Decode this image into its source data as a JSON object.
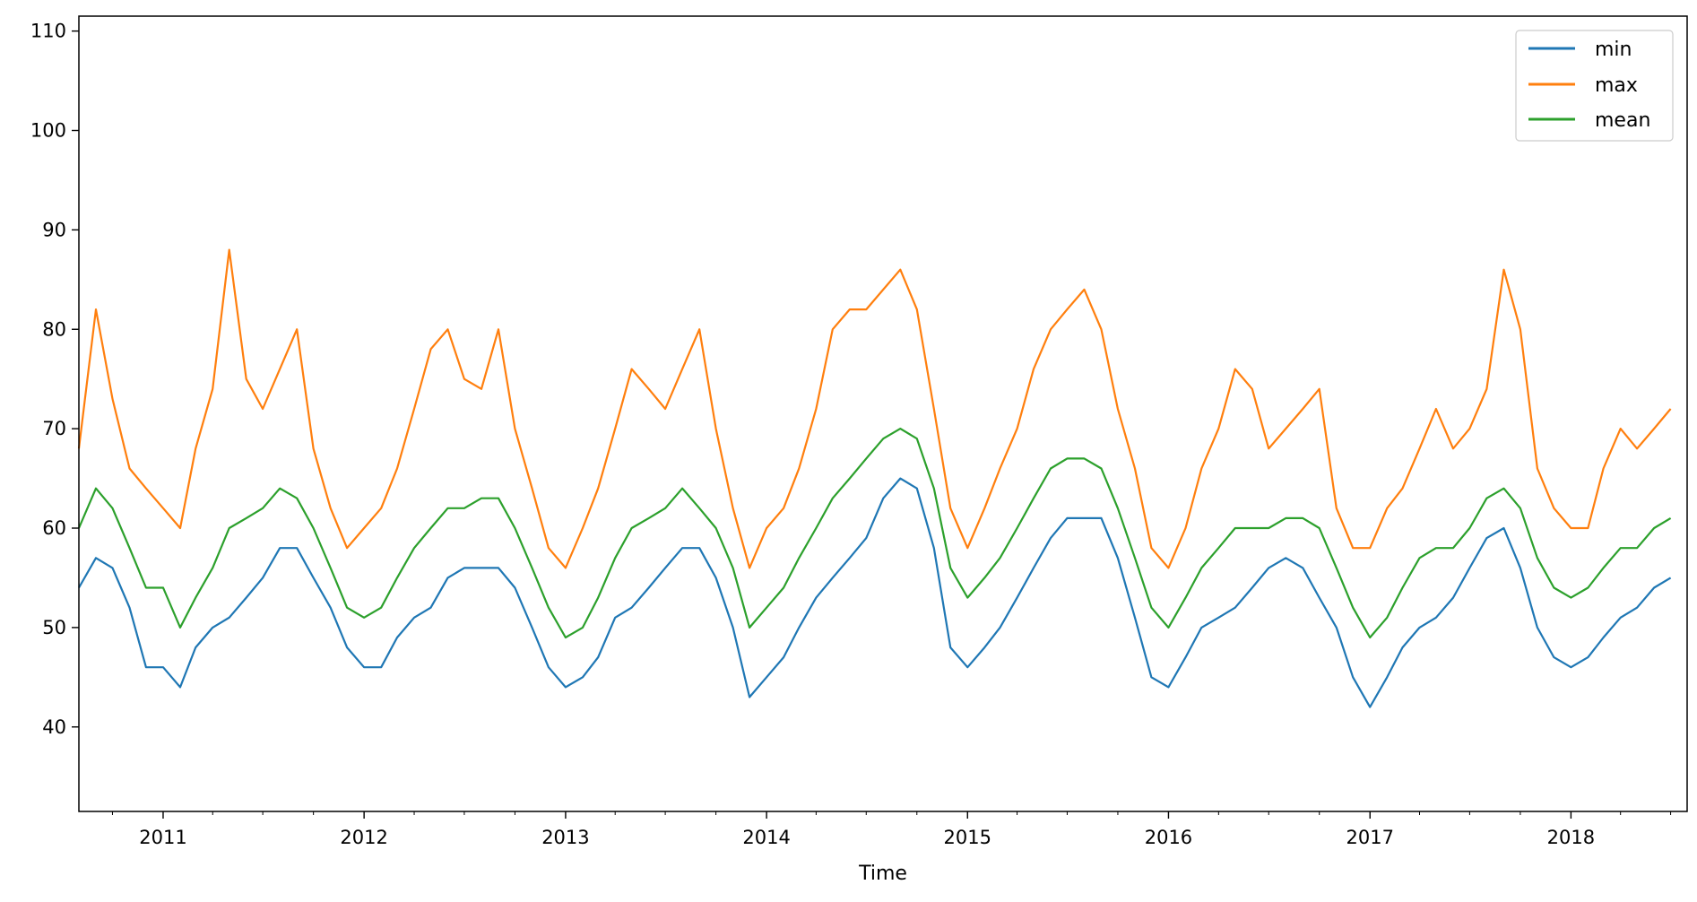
{
  "chart_data": {
    "type": "line",
    "title": "",
    "xlabel": "Time",
    "ylabel": "",
    "xlim": [
      "2010-08-01",
      "2018-07-31"
    ],
    "ylim": [
      31.5,
      111.5
    ],
    "x_ticks": [
      "2011",
      "2012",
      "2013",
      "2014",
      "2015",
      "2016",
      "2017",
      "2018"
    ],
    "y_ticks": [
      40,
      50,
      60,
      70,
      80,
      90,
      100,
      110
    ],
    "grid": false,
    "legend": {
      "position": "top-right",
      "entries": [
        "min",
        "max",
        "mean"
      ]
    },
    "series": [
      {
        "name": "min",
        "color": "#1f77b4",
        "x": [
          "2010-08-01",
          "2010-09-01",
          "2010-10-01",
          "2010-11-01",
          "2010-12-01",
          "2011-01-01",
          "2011-02-01",
          "2011-03-01",
          "2011-04-01",
          "2011-05-01",
          "2011-06-01",
          "2011-07-01",
          "2011-08-01",
          "2011-09-01",
          "2011-10-01",
          "2011-11-01",
          "2011-12-01",
          "2012-01-01",
          "2012-02-01",
          "2012-03-01",
          "2012-04-01",
          "2012-05-01",
          "2012-06-01",
          "2012-07-01",
          "2012-08-01",
          "2012-09-01",
          "2012-10-01",
          "2012-11-01",
          "2012-12-01",
          "2013-01-01",
          "2013-02-01",
          "2013-03-01",
          "2013-04-01",
          "2013-05-01",
          "2013-06-01",
          "2013-07-01",
          "2013-08-01",
          "2013-09-01",
          "2013-10-01",
          "2013-11-01",
          "2013-12-01",
          "2014-01-01",
          "2014-02-01",
          "2014-03-01",
          "2014-04-01",
          "2014-05-01",
          "2014-06-01",
          "2014-07-01",
          "2014-08-01",
          "2014-09-01",
          "2014-10-01",
          "2014-11-01",
          "2014-12-01",
          "2015-01-01",
          "2015-02-01",
          "2015-03-01",
          "2015-04-01",
          "2015-05-01",
          "2015-06-01",
          "2015-07-01",
          "2015-08-01",
          "2015-09-01",
          "2015-10-01",
          "2015-11-01",
          "2015-12-01",
          "2016-01-01",
          "2016-02-01",
          "2016-03-01",
          "2016-04-01",
          "2016-05-01",
          "2016-06-01",
          "2016-07-01",
          "2016-08-01",
          "2016-09-01",
          "2016-10-01",
          "2016-11-01",
          "2016-12-01",
          "2017-01-01",
          "2017-02-01",
          "2017-03-01",
          "2017-04-01",
          "2017-05-01",
          "2017-06-01",
          "2017-07-01",
          "2017-08-01",
          "2017-09-01",
          "2017-10-01",
          "2017-11-01",
          "2017-12-01",
          "2018-01-01",
          "2018-02-01",
          "2018-03-01",
          "2018-04-01",
          "2018-05-01",
          "2018-06-01",
          "2018-07-01"
        ],
        "values": [
          54,
          57,
          56,
          52,
          46,
          46,
          44,
          48,
          50,
          51,
          53,
          55,
          58,
          58,
          55,
          52,
          48,
          46,
          46,
          49,
          51,
          52,
          55,
          56,
          56,
          56,
          54,
          50,
          46,
          44,
          45,
          47,
          51,
          52,
          54,
          56,
          58,
          58,
          55,
          50,
          43,
          45,
          47,
          50,
          53,
          55,
          57,
          59,
          63,
          65,
          64,
          58,
          48,
          46,
          48,
          50,
          53,
          56,
          59,
          61,
          61,
          61,
          57,
          51,
          45,
          44,
          47,
          50,
          51,
          52,
          54,
          56,
          57,
          56,
          53,
          50,
          45,
          42,
          45,
          48,
          50,
          51,
          53,
          56,
          59,
          60,
          56,
          50,
          47,
          46,
          47,
          49,
          51,
          52,
          54,
          55
        ]
      },
      {
        "name": "max",
        "color": "#ff7f0e",
        "x": [
          "2010-08-01",
          "2010-09-01",
          "2010-10-01",
          "2010-11-01",
          "2010-12-01",
          "2011-01-01",
          "2011-02-01",
          "2011-03-01",
          "2011-04-01",
          "2011-05-01",
          "2011-06-01",
          "2011-07-01",
          "2011-08-01",
          "2011-09-01",
          "2011-10-01",
          "2011-11-01",
          "2011-12-01",
          "2012-01-01",
          "2012-02-01",
          "2012-03-01",
          "2012-04-01",
          "2012-05-01",
          "2012-06-01",
          "2012-07-01",
          "2012-08-01",
          "2012-09-01",
          "2012-10-01",
          "2012-11-01",
          "2012-12-01",
          "2013-01-01",
          "2013-02-01",
          "2013-03-01",
          "2013-04-01",
          "2013-05-01",
          "2013-06-01",
          "2013-07-01",
          "2013-08-01",
          "2013-09-01",
          "2013-10-01",
          "2013-11-01",
          "2013-12-01",
          "2014-01-01",
          "2014-02-01",
          "2014-03-01",
          "2014-04-01",
          "2014-05-01",
          "2014-06-01",
          "2014-07-01",
          "2014-08-01",
          "2014-09-01",
          "2014-10-01",
          "2014-11-01",
          "2014-12-01",
          "2015-01-01",
          "2015-02-01",
          "2015-03-01",
          "2015-04-01",
          "2015-05-01",
          "2015-06-01",
          "2015-07-01",
          "2015-08-01",
          "2015-09-01",
          "2015-10-01",
          "2015-11-01",
          "2015-12-01",
          "2016-01-01",
          "2016-02-01",
          "2016-03-01",
          "2016-04-01",
          "2016-05-01",
          "2016-06-01",
          "2016-07-01",
          "2016-08-01",
          "2016-09-01",
          "2016-10-01",
          "2016-11-01",
          "2016-12-01",
          "2017-01-01",
          "2017-02-01",
          "2017-03-01",
          "2017-04-01",
          "2017-05-01",
          "2017-06-01",
          "2017-07-01",
          "2017-08-01",
          "2017-09-01",
          "2017-10-01",
          "2017-11-01",
          "2017-12-01",
          "2018-01-01",
          "2018-02-01",
          "2018-03-01",
          "2018-04-01",
          "2018-05-01",
          "2018-06-01",
          "2018-07-01"
        ],
        "values": [
          68,
          82,
          73,
          66,
          64,
          62,
          60,
          68,
          74,
          88,
          75,
          72,
          76,
          80,
          68,
          62,
          58,
          60,
          62,
          66,
          72,
          78,
          80,
          75,
          74,
          80,
          70,
          64,
          58,
          56,
          60,
          64,
          70,
          76,
          74,
          72,
          76,
          80,
          70,
          62,
          56,
          60,
          62,
          66,
          72,
          80,
          82,
          82,
          84,
          86,
          82,
          72,
          62,
          58,
          62,
          66,
          70,
          76,
          80,
          82,
          84,
          80,
          72,
          66,
          58,
          56,
          60,
          66,
          70,
          76,
          74,
          68,
          70,
          72,
          74,
          62,
          58,
          58,
          62,
          64,
          68,
          72,
          68,
          70,
          74,
          86,
          80,
          66,
          62,
          60,
          60,
          66,
          70,
          68,
          70,
          72
        ]
      },
      {
        "name": "mean",
        "color": "#2ca02c",
        "x": [
          "2010-08-01",
          "2010-09-01",
          "2010-10-01",
          "2010-11-01",
          "2010-12-01",
          "2011-01-01",
          "2011-02-01",
          "2011-03-01",
          "2011-04-01",
          "2011-05-01",
          "2011-06-01",
          "2011-07-01",
          "2011-08-01",
          "2011-09-01",
          "2011-10-01",
          "2011-11-01",
          "2011-12-01",
          "2012-01-01",
          "2012-02-01",
          "2012-03-01",
          "2012-04-01",
          "2012-05-01",
          "2012-06-01",
          "2012-07-01",
          "2012-08-01",
          "2012-09-01",
          "2012-10-01",
          "2012-11-01",
          "2012-12-01",
          "2013-01-01",
          "2013-02-01",
          "2013-03-01",
          "2013-04-01",
          "2013-05-01",
          "2013-06-01",
          "2013-07-01",
          "2013-08-01",
          "2013-09-01",
          "2013-10-01",
          "2013-11-01",
          "2013-12-01",
          "2014-01-01",
          "2014-02-01",
          "2014-03-01",
          "2014-04-01",
          "2014-05-01",
          "2014-06-01",
          "2014-07-01",
          "2014-08-01",
          "2014-09-01",
          "2014-10-01",
          "2014-11-01",
          "2014-12-01",
          "2015-01-01",
          "2015-02-01",
          "2015-03-01",
          "2015-04-01",
          "2015-05-01",
          "2015-06-01",
          "2015-07-01",
          "2015-08-01",
          "2015-09-01",
          "2015-10-01",
          "2015-11-01",
          "2015-12-01",
          "2016-01-01",
          "2016-02-01",
          "2016-03-01",
          "2016-04-01",
          "2016-05-01",
          "2016-06-01",
          "2016-07-01",
          "2016-08-01",
          "2016-09-01",
          "2016-10-01",
          "2016-11-01",
          "2016-12-01",
          "2017-01-01",
          "2017-02-01",
          "2017-03-01",
          "2017-04-01",
          "2017-05-01",
          "2017-06-01",
          "2017-07-01",
          "2017-08-01",
          "2017-09-01",
          "2017-10-01",
          "2017-11-01",
          "2017-12-01",
          "2018-01-01",
          "2018-02-01",
          "2018-03-01",
          "2018-04-01",
          "2018-05-01",
          "2018-06-01",
          "2018-07-01"
        ],
        "values": [
          60,
          64,
          62,
          58,
          54,
          54,
          50,
          53,
          56,
          60,
          61,
          62,
          64,
          63,
          60,
          56,
          52,
          51,
          52,
          55,
          58,
          60,
          62,
          62,
          63,
          63,
          60,
          56,
          52,
          49,
          50,
          53,
          57,
          60,
          61,
          62,
          64,
          62,
          60,
          56,
          50,
          52,
          54,
          57,
          60,
          63,
          65,
          67,
          69,
          70,
          69,
          64,
          56,
          53,
          55,
          57,
          60,
          63,
          66,
          67,
          67,
          66,
          62,
          57,
          52,
          50,
          53,
          56,
          58,
          60,
          60,
          60,
          61,
          61,
          60,
          56,
          52,
          49,
          51,
          54,
          57,
          58,
          58,
          60,
          63,
          64,
          62,
          57,
          54,
          53,
          54,
          56,
          58,
          58,
          60,
          61
        ]
      }
    ]
  }
}
